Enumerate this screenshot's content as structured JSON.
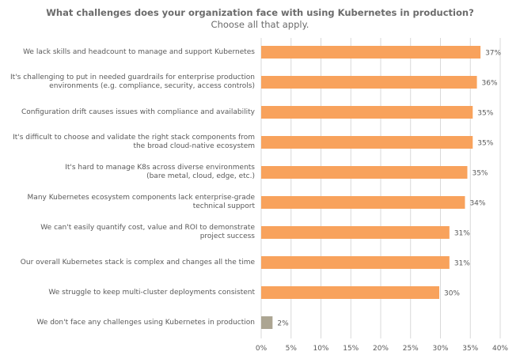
{
  "chart_data": {
    "type": "bar",
    "orientation": "horizontal",
    "title": "What challenges does your organization face with using Kubernetes in production?",
    "subtitle": "Choose all that apply.",
    "categories": [
      "We lack skills and headcount to manage and support Kubernetes",
      "It's challenging to put in needed guardrails for enterprise production environments (e.g. compliance, security, access controls)",
      "Configuration drift causes issues with compliance and availability",
      "It's difficult to choose and validate the right stack components from the broad cloud-native ecosystem",
      "It's hard to manage K8s across diverse environments (bare metal, cloud, edge, etc.)",
      "Many Kubernetes ecosystem components lack enterprise-grade technical support",
      "We can't easily quantify cost, value and ROI to demonstrate project success",
      "Our overall Kubernetes stack is complex and changes all the time",
      "We struggle to keep multi-cluster deployments consistent",
      "We don't face any challenges using Kubernetes in production"
    ],
    "category_lines": [
      [
        "We lack skills and headcount to manage and support Kubernetes"
      ],
      [
        "It's challenging to put in needed guardrails for enterprise production",
        "environments (e.g. compliance, security, access controls)"
      ],
      [
        "Configuration drift causes issues with compliance and availability"
      ],
      [
        "It's difficult to choose and validate the right stack components from",
        "the broad cloud-native ecosystem"
      ],
      [
        "It's hard to manage K8s across diverse environments",
        "(bare metal, cloud, edge, etc.)"
      ],
      [
        "Many Kubernetes ecosystem components lack enterprise-grade",
        "technical support"
      ],
      [
        "We can't easily quantify cost, value and ROI to demonstrate",
        "project success"
      ],
      [
        "Our overall Kubernetes stack is complex and changes all the time"
      ],
      [
        "We struggle to keep multi-cluster deployments consistent"
      ],
      [
        "We don't face any challenges using Kubernetes in production"
      ]
    ],
    "values": [
      36.7,
      36.1,
      35.4,
      35.4,
      34.5,
      34.1,
      31.5,
      31.5,
      29.8,
      1.9
    ],
    "data_labels": [
      "37%",
      "36%",
      "35%",
      "35%",
      "35%",
      "34%",
      "31%",
      "31%",
      "30%",
      "2%"
    ],
    "xlim": [
      0,
      40
    ],
    "xticks": [
      "0%",
      "5%",
      "10%",
      "15%",
      "20%",
      "25%",
      "30%",
      "35%",
      "40%"
    ],
    "grid": true,
    "colors": {
      "default": "#F8A25C",
      "last": "#ACA592",
      "grid": "#D9D9D9"
    }
  }
}
